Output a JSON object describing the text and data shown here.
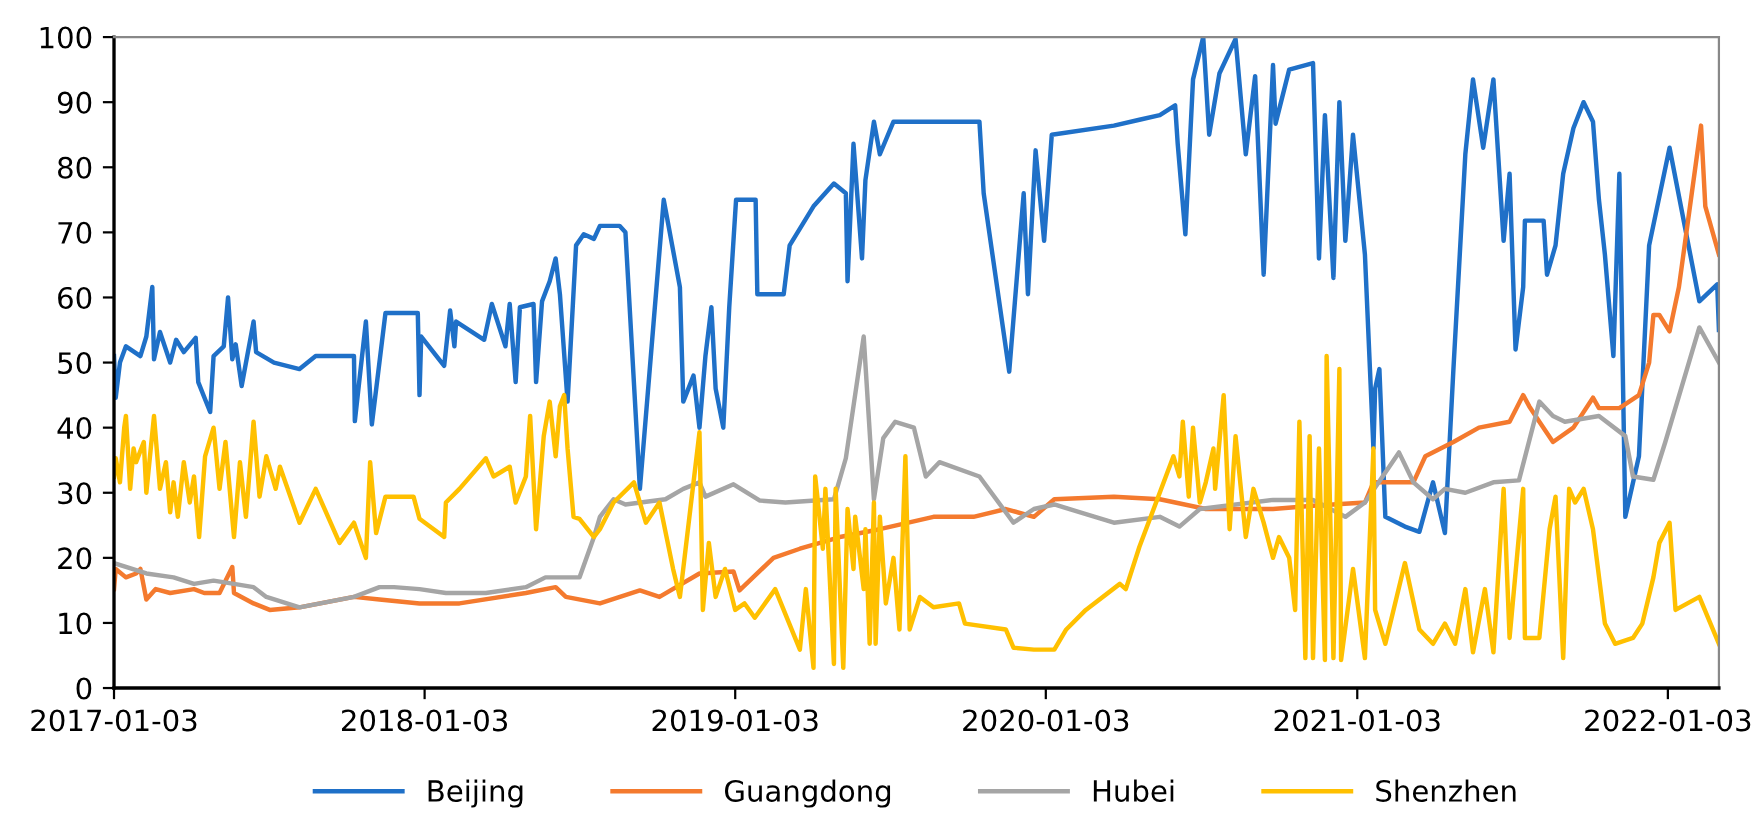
{
  "chart_data": {
    "type": "line",
    "xlim": [
      "2017-01-03",
      "2022-03-04"
    ],
    "xticks": [
      "2017-01-03",
      "2018-01-03",
      "2019-01-03",
      "2020-01-03",
      "2021-01-03",
      "2022-01-03"
    ],
    "ylim": [
      0,
      100
    ],
    "yticks": [
      0,
      10,
      20,
      30,
      40,
      50,
      60,
      70,
      80,
      90,
      100
    ],
    "grid": false,
    "legend": "bottom",
    "marker": "none",
    "line_style": "solid",
    "series": [
      {
        "name": "Beijing",
        "color": "#1f70c8",
        "x": [
          "2017-01-03",
          "2017-01-05",
          "2017-01-10",
          "2017-01-17",
          "2017-02-03",
          "2017-02-10",
          "2017-02-17",
          "2017-02-19",
          "2017-02-26",
          "2017-03-10",
          "2017-03-17",
          "2017-03-26",
          "2017-04-09",
          "2017-04-12",
          "2017-04-26",
          "2017-04-30",
          "2017-05-12",
          "2017-05-17",
          "2017-05-22",
          "2017-05-26",
          "2017-06-02",
          "2017-06-16",
          "2017-06-19",
          "2017-07-10",
          "2017-08-09",
          "2017-08-28",
          "2017-10-12",
          "2017-10-13",
          "2017-10-26",
          "2017-11-02",
          "2017-11-18",
          "2017-12-26",
          "2017-12-28",
          "2017-12-30",
          "2018-01-26",
          "2018-02-02",
          "2018-02-07",
          "2018-02-09",
          "2018-03-14",
          "2018-03-23",
          "2018-04-08",
          "2018-04-13",
          "2018-04-20",
          "2018-04-25",
          "2018-05-11",
          "2018-05-14",
          "2018-05-21",
          "2018-05-30",
          "2018-06-06",
          "2018-06-11",
          "2018-06-20",
          "2018-06-30",
          "2018-07-09",
          "2018-07-21",
          "2018-07-28",
          "2018-08-20",
          "2018-08-27",
          "2018-09-13",
          "2018-09-29",
          "2018-10-11",
          "2018-10-30",
          "2018-11-03",
          "2018-11-15",
          "2018-11-22",
          "2018-11-29",
          "2018-12-06",
          "2018-12-11",
          "2018-12-20",
          "2018-12-27",
          "2019-01-04",
          "2019-01-27",
          "2019-01-29",
          "2019-03-01",
          "2019-03-08",
          "2019-04-05",
          "2019-04-29",
          "2019-05-13",
          "2019-05-15",
          "2019-05-22",
          "2019-06-01",
          "2019-06-05",
          "2019-06-15",
          "2019-06-22",
          "2019-07-08",
          "2019-10-17",
          "2019-10-22",
          "2019-11-21",
          "2019-12-08",
          "2019-12-13",
          "2019-12-22",
          "2020-01-01",
          "2020-01-10",
          "2020-03-23",
          "2020-04-22",
          "2020-05-16",
          "2020-06-03",
          "2020-06-06",
          "2020-06-15",
          "2020-06-24",
          "2020-07-06",
          "2020-07-13",
          "2020-07-25",
          "2020-08-13",
          "2020-08-25",
          "2020-09-05",
          "2020-09-15",
          "2020-09-26",
          "2020-09-29",
          "2020-10-15",
          "2020-11-12",
          "2020-11-19",
          "2020-11-26",
          "2020-12-06",
          "2020-12-13",
          "2020-12-20",
          "2020-12-29",
          "2021-01-12",
          "2021-01-22",
          "2021-01-24",
          "2021-01-29",
          "2021-02-05",
          "2021-02-28",
          "2021-03-17",
          "2021-04-02",
          "2021-04-16",
          "2021-04-26",
          "2021-05-10",
          "2021-05-19",
          "2021-05-31",
          "2021-06-12",
          "2021-06-24",
          "2021-07-01",
          "2021-07-08",
          "2021-07-17",
          "2021-07-19",
          "2021-08-10",
          "2021-08-14",
          "2021-08-24",
          "2021-09-02",
          "2021-09-14",
          "2021-09-26",
          "2021-10-07",
          "2021-10-14",
          "2021-10-21",
          "2021-10-31",
          "2021-11-07",
          "2021-11-14",
          "2021-11-30",
          "2021-12-12",
          "2022-01-05",
          "2022-02-09",
          "2022-03-02",
          "2022-03-04"
        ],
        "values": [
          51,
          44.6,
          50,
          52.5,
          51,
          54,
          61.6,
          50.5,
          54.7,
          50,
          53.5,
          51.6,
          53.8,
          47,
          42.4,
          51,
          52.5,
          60,
          50.5,
          52.8,
          46.4,
          56.3,
          51.6,
          50,
          49,
          51,
          51,
          41,
          56.3,
          40.5,
          57.6,
          57.6,
          45,
          54,
          49.5,
          58,
          52.5,
          56.3,
          53.5,
          59,
          52.5,
          59,
          47,
          58.5,
          59,
          47,
          59.4,
          62.5,
          66,
          60.5,
          44,
          68,
          69.7,
          69,
          71,
          71,
          70,
          30.6,
          56,
          75,
          61.6,
          44,
          48,
          40,
          51,
          58.5,
          46,
          40,
          58.5,
          75,
          75,
          60.5,
          60.5,
          68,
          74,
          77.5,
          76,
          62.5,
          83.6,
          66,
          78,
          87,
          82,
          87,
          87,
          76,
          48.6,
          76,
          60.5,
          82.6,
          68.7,
          85,
          86.4,
          87.3,
          88,
          89.5,
          83.6,
          69.7,
          93.5,
          100,
          85,
          94.4,
          99.7,
          82,
          94,
          63.5,
          95.7,
          86.7,
          95,
          96,
          66,
          88,
          63,
          90,
          68.7,
          85,
          66.6,
          36.8,
          46,
          49,
          26.3,
          24.8,
          24,
          31.6,
          23.8,
          49,
          82,
          93.5,
          83,
          93.5,
          68.7,
          79,
          52,
          61.6,
          71.8,
          71.8,
          63.5,
          68,
          79,
          86,
          90,
          87,
          75,
          66.6,
          51,
          79,
          26.3,
          35.6,
          68,
          83,
          59.4,
          62,
          55
        ]
      },
      {
        "name": "Guangdong",
        "color": "#f47a2e",
        "x": [
          "2017-01-03",
          "2017-01-05",
          "2017-01-17",
          "2017-01-29",
          "2017-02-03",
          "2017-02-10",
          "2017-02-21",
          "2017-03-10",
          "2017-04-07",
          "2017-04-19",
          "2017-05-07",
          "2017-05-22",
          "2017-05-24",
          "2017-06-16",
          "2017-07-05",
          "2017-08-09",
          "2017-10-12",
          "2017-11-11",
          "2017-12-28",
          "2018-02-13",
          "2018-05-02",
          "2018-06-06",
          "2018-06-18",
          "2018-07-28",
          "2018-09-13",
          "2018-10-06",
          "2018-11-22",
          "2019-01-01",
          "2019-01-08",
          "2019-02-17",
          "2019-03-20",
          "2019-05-06",
          "2019-06-22",
          "2019-08-24",
          "2019-10-10",
          "2019-11-17",
          "2019-12-20",
          "2020-01-13",
          "2020-03-23",
          "2020-05-16",
          "2020-07-09",
          "2020-09-26",
          "2020-11-12",
          "2021-01-12",
          "2021-01-22",
          "2021-03-10",
          "2021-03-24",
          "2021-04-26",
          "2021-05-26",
          "2021-07-01",
          "2021-07-17",
          "2021-07-24",
          "2021-08-05",
          "2021-08-21",
          "2021-09-14",
          "2021-10-07",
          "2021-10-14",
          "2021-11-07",
          "2021-11-30",
          "2021-12-12",
          "2021-12-17",
          "2021-12-24",
          "2022-01-05",
          "2022-01-16",
          "2022-02-11",
          "2022-02-16",
          "2022-03-04"
        ],
        "values": [
          15.2,
          18.3,
          17,
          17.6,
          18.3,
          13.6,
          15.2,
          14.6,
          15.2,
          14.6,
          14.6,
          18.6,
          14.6,
          13,
          12,
          12.4,
          14,
          13.6,
          13,
          13,
          14.6,
          15.5,
          14,
          13,
          15,
          14,
          17.6,
          17.9,
          15,
          20,
          21.4,
          23.2,
          24.4,
          26.3,
          26.3,
          27.5,
          26.3,
          29,
          29.4,
          29,
          27.5,
          27.5,
          28,
          28.5,
          31.6,
          31.6,
          35.6,
          37.8,
          40,
          40.9,
          45,
          43.3,
          40.9,
          37.8,
          40,
          44.6,
          43,
          43,
          45,
          50,
          57.3,
          57.3,
          54.8,
          61.6,
          86.4,
          74,
          66.6
        ]
      },
      {
        "name": "Hubei",
        "color": "#a5a5a5",
        "x": [
          "2017-01-03",
          "2017-01-17",
          "2017-02-10",
          "2017-03-14",
          "2017-04-07",
          "2017-04-30",
          "2017-05-24",
          "2017-06-16",
          "2017-07-01",
          "2017-08-09",
          "2017-10-12",
          "2017-11-11",
          "2017-11-28",
          "2017-12-28",
          "2018-01-28",
          "2018-03-16",
          "2018-05-02",
          "2018-05-25",
          "2018-07-04",
          "2018-07-21",
          "2018-07-28",
          "2018-08-13",
          "2018-08-27",
          "2018-10-13",
          "2018-11-03",
          "2018-11-22",
          "2018-11-29",
          "2019-01-01",
          "2019-02-01",
          "2019-03-03",
          "2019-04-29",
          "2019-05-13",
          "2019-06-03",
          "2019-06-15",
          "2019-06-26",
          "2019-07-10",
          "2019-08-01",
          "2019-08-15",
          "2019-08-31",
          "2019-10-17",
          "2019-11-26",
          "2019-12-20",
          "2020-01-13",
          "2020-03-23",
          "2020-05-16",
          "2020-06-08",
          "2020-07-02",
          "2020-09-26",
          "2020-11-12",
          "2020-12-20",
          "2021-01-12",
          "2021-02-21",
          "2021-03-10",
          "2021-04-02",
          "2021-04-16",
          "2021-05-10",
          "2021-06-12",
          "2021-07-12",
          "2021-08-05",
          "2021-08-21",
          "2021-09-04",
          "2021-10-14",
          "2021-11-14",
          "2021-11-23",
          "2021-12-17",
          "2021-12-31",
          "2022-02-09",
          "2022-03-04"
        ],
        "values": [
          19.2,
          18.6,
          17.6,
          17,
          16,
          16.5,
          16,
          15.5,
          14,
          12.4,
          14,
          15.5,
          15.5,
          15.2,
          14.6,
          14.6,
          15.5,
          17,
          17,
          23.2,
          26.3,
          29,
          28.2,
          29,
          30.6,
          31.6,
          29.4,
          31.3,
          28.8,
          28.5,
          29,
          35.3,
          54,
          29,
          38.4,
          40.9,
          40,
          32.5,
          34.7,
          32.5,
          25.4,
          27.5,
          28.2,
          25.4,
          26.3,
          24.8,
          27.5,
          28.9,
          28.9,
          26.3,
          28.5,
          36.2,
          31.6,
          29,
          30.6,
          30,
          31.6,
          31.9,
          44,
          41.8,
          40.9,
          41.8,
          38.7,
          32.5,
          32,
          37.8,
          55.4,
          50
        ]
      },
      {
        "name": "Shenzhen",
        "color": "#ffc000",
        "x": [
          "2017-01-03",
          "2017-01-05",
          "2017-01-10",
          "2017-01-15",
          "2017-01-17",
          "2017-01-22",
          "2017-01-26",
          "2017-01-29",
          "2017-02-07",
          "2017-02-10",
          "2017-02-19",
          "2017-02-26",
          "2017-03-05",
          "2017-03-10",
          "2017-03-14",
          "2017-03-19",
          "2017-03-26",
          "2017-04-02",
          "2017-04-07",
          "2017-04-13",
          "2017-04-20",
          "2017-04-30",
          "2017-05-07",
          "2017-05-14",
          "2017-05-24",
          "2017-05-31",
          "2017-06-07",
          "2017-06-16",
          "2017-06-23",
          "2017-07-01",
          "2017-07-12",
          "2017-07-17",
          "2017-08-09",
          "2017-08-28",
          "2017-09-25",
          "2017-10-12",
          "2017-10-26",
          "2017-10-31",
          "2017-11-07",
          "2017-11-18",
          "2017-12-21",
          "2017-12-28",
          "2018-01-26",
          "2018-01-28",
          "2018-02-13",
          "2018-03-16",
          "2018-03-25",
          "2018-04-13",
          "2018-04-20",
          "2018-05-02",
          "2018-05-07",
          "2018-05-14",
          "2018-05-23",
          "2018-05-30",
          "2018-06-06",
          "2018-06-11",
          "2018-06-16",
          "2018-06-20",
          "2018-06-27",
          "2018-07-04",
          "2018-07-21",
          "2018-07-28",
          "2018-08-13",
          "2018-09-06",
          "2018-09-20",
          "2018-10-06",
          "2018-10-22",
          "2018-10-30",
          "2018-11-22",
          "2018-11-26",
          "2018-12-03",
          "2018-12-11",
          "2018-12-22",
          "2019-01-03",
          "2019-01-14",
          "2019-01-26",
          "2019-02-19",
          "2019-03-20",
          "2019-03-27",
          "2019-04-05",
          "2019-04-07",
          "2019-04-16",
          "2019-04-19",
          "2019-04-29",
          "2019-05-01",
          "2019-05-10",
          "2019-05-15",
          "2019-05-22",
          "2019-05-24",
          "2019-06-03",
          "2019-06-05",
          "2019-06-10",
          "2019-06-15",
          "2019-06-17",
          "2019-06-22",
          "2019-06-29",
          "2019-07-08",
          "2019-07-15",
          "2019-07-22",
          "2019-07-27",
          "2019-08-08",
          "2019-08-24",
          "2019-09-23",
          "2019-09-30",
          "2019-11-17",
          "2019-11-26",
          "2019-12-20",
          "2020-01-13",
          "2020-01-27",
          "2020-02-19",
          "2020-03-30",
          "2020-04-06",
          "2020-04-22",
          "2020-06-01",
          "2020-06-08",
          "2020-06-12",
          "2020-06-19",
          "2020-06-24",
          "2020-07-02",
          "2020-07-09",
          "2020-07-18",
          "2020-07-20",
          "2020-07-30",
          "2020-08-06",
          "2020-08-13",
          "2020-08-25",
          "2020-09-03",
          "2020-09-15",
          "2020-09-26",
          "2020-10-03",
          "2020-10-15",
          "2020-10-22",
          "2020-10-27",
          "2020-11-03",
          "2020-11-08",
          "2020-11-12",
          "2020-11-19",
          "2020-11-26",
          "2020-11-28",
          "2020-12-06",
          "2020-12-13",
          "2020-12-15",
          "2020-12-29",
          "2021-01-12",
          "2021-01-22",
          "2021-01-24",
          "2021-02-05",
          "2021-02-28",
          "2021-03-17",
          "2021-04-02",
          "2021-04-16",
          "2021-04-28",
          "2021-05-10",
          "2021-05-19",
          "2021-06-02",
          "2021-06-12",
          "2021-06-24",
          "2021-07-01",
          "2021-07-17",
          "2021-07-19",
          "2021-08-05",
          "2021-08-17",
          "2021-08-24",
          "2021-09-02",
          "2021-09-09",
          "2021-09-16",
          "2021-09-26",
          "2021-10-07",
          "2021-10-21",
          "2021-11-02",
          "2021-11-23",
          "2021-12-04",
          "2021-12-17",
          "2021-12-24",
          "2022-01-05",
          "2022-01-12",
          "2022-02-09",
          "2022-03-04"
        ],
        "values": [
          32.5,
          35.3,
          31.6,
          40,
          41.8,
          30.6,
          36.8,
          34.7,
          37.8,
          30,
          41.8,
          30.6,
          34.7,
          27,
          31.6,
          26.3,
          34.7,
          28.5,
          32.5,
          23.2,
          35.6,
          40,
          30.6,
          37.8,
          23.2,
          34.7,
          26.3,
          40.9,
          29.4,
          35.6,
          30.6,
          34,
          25.4,
          30.6,
          22.3,
          25.4,
          20,
          34.7,
          23.8,
          29.4,
          29.4,
          26,
          23.2,
          28.5,
          30.6,
          35.3,
          32.5,
          34,
          28.5,
          32.5,
          41.8,
          24.4,
          38.7,
          44,
          35.6,
          43.3,
          45,
          36.8,
          26.3,
          26,
          23.2,
          24.4,
          28.5,
          31.6,
          25.4,
          28.5,
          18.3,
          14,
          39.3,
          12,
          22.3,
          14,
          18.3,
          12,
          13,
          10.8,
          15.2,
          5.9,
          15.2,
          3.1,
          32.5,
          21.4,
          30.6,
          3.7,
          30.6,
          3.1,
          27.5,
          18.3,
          26.3,
          15.2,
          24.4,
          6.8,
          28.5,
          6.8,
          26.3,
          13,
          20,
          9,
          35.6,
          9,
          14,
          12.4,
          13,
          9.9,
          9,
          6.2,
          5.9,
          5.9,
          9,
          12,
          16,
          15.2,
          21.7,
          35.6,
          32.5,
          40.9,
          29.4,
          40,
          28.5,
          31.6,
          36.8,
          30.6,
          45,
          24.4,
          38.7,
          23.2,
          30.6,
          25.4,
          20,
          23.2,
          20,
          12,
          40.9,
          4.6,
          38.7,
          4.6,
          36.8,
          4.3,
          51,
          4.6,
          49,
          4.3,
          18.3,
          4.6,
          36.8,
          12,
          6.8,
          19.2,
          9,
          6.8,
          9.9,
          6.8,
          15.2,
          5.5,
          15.2,
          5.5,
          30.6,
          7.7,
          30.6,
          7.7,
          7.7,
          24.4,
          29.4,
          4.6,
          30.6,
          28.5,
          30.6,
          24.4,
          9.9,
          6.8,
          7.7,
          9.9,
          17,
          22.3,
          25.4,
          12,
          14,
          6.8
        ]
      }
    ]
  }
}
